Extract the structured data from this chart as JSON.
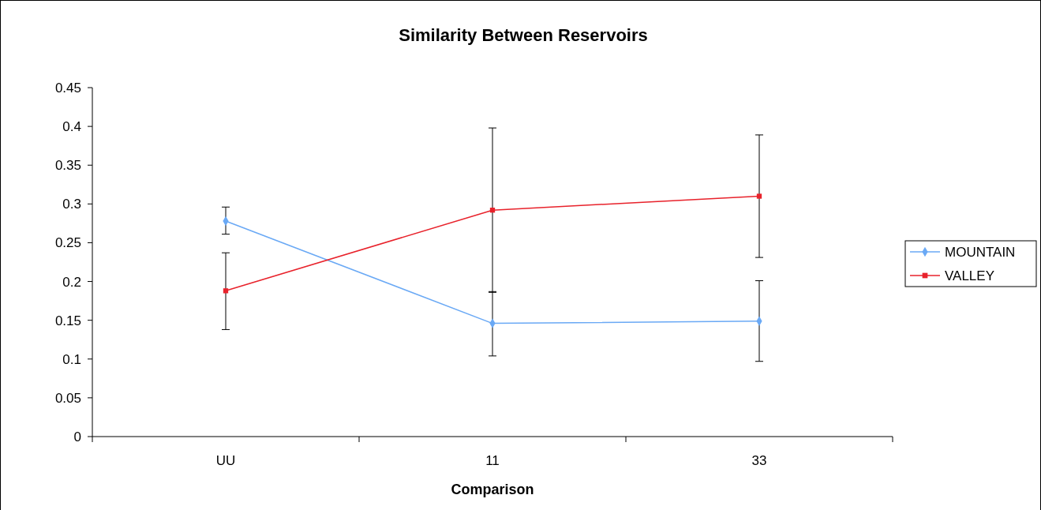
{
  "chart_data": {
    "type": "line",
    "title": "Similarity Between Reservoirs",
    "xlabel": "Comparison",
    "categories": [
      "UU",
      "11",
      "33"
    ],
    "series": [
      {
        "name": "MOUNTAIN",
        "color": "#6aa9f5",
        "marker": "diamond",
        "values": [
          0.278,
          0.146,
          0.149
        ],
        "errors": [
          [
            0.261,
            0.296
          ],
          [
            0.104,
            0.187
          ],
          [
            0.097,
            0.201
          ]
        ]
      },
      {
        "name": "VALLEY",
        "color": "#e8222b",
        "marker": "square",
        "values": [
          0.188,
          0.292,
          0.31
        ],
        "errors": [
          [
            0.138,
            0.237
          ],
          [
            0.186,
            0.398
          ],
          [
            0.231,
            0.389
          ]
        ]
      }
    ],
    "ylim": [
      0,
      0.45
    ],
    "yticks": [
      0,
      0.05,
      0.1,
      0.15,
      0.2,
      0.25,
      0.3,
      0.35,
      0.4,
      0.45
    ],
    "grid": false,
    "legend": "right"
  }
}
